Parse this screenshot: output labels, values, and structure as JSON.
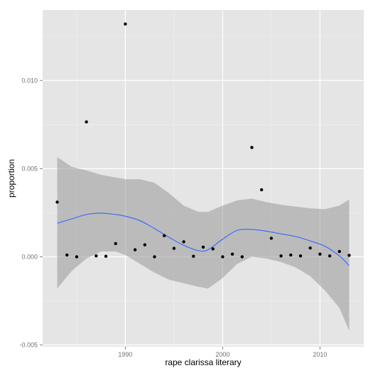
{
  "chart_data": {
    "type": "scatter",
    "title": "",
    "xlabel": "rape clarissa literary",
    "ylabel": "proportion",
    "xlim": [
      1981.5,
      2014.5
    ],
    "ylim": [
      -0.0051,
      0.014
    ],
    "x_ticks": [
      1990,
      2000,
      2010
    ],
    "x_tick_labels": [
      "1990",
      "2000",
      "2010"
    ],
    "y_ticks": [
      -0.005,
      0.0,
      0.005,
      0.01
    ],
    "y_tick_labels": [
      "-0.005",
      "0.000",
      "0.005",
      "0.010"
    ],
    "grid": true,
    "legend": "none",
    "colors": {
      "panel_background": "#e5e5e5",
      "grid_major": "#ffffff",
      "grid_minor": "#f0f0f0",
      "points": "#000000",
      "smooth_line": "#3366ff",
      "confidence_band": "#999999"
    },
    "points": [
      {
        "x": 1983,
        "y": 0.0031
      },
      {
        "x": 1984,
        "y": 0.0001
      },
      {
        "x": 1985,
        "y": 0.0
      },
      {
        "x": 1986,
        "y": 0.00765
      },
      {
        "x": 1987,
        "y": 5e-05
      },
      {
        "x": 1988,
        "y": 3e-05
      },
      {
        "x": 1989,
        "y": 0.00075
      },
      {
        "x": 1990,
        "y": 0.0132
      },
      {
        "x": 1991,
        "y": 0.0004
      },
      {
        "x": 1992,
        "y": 0.00068
      },
      {
        "x": 1993,
        "y": 0.0
      },
      {
        "x": 1994,
        "y": 0.0012
      },
      {
        "x": 1995,
        "y": 0.00048
      },
      {
        "x": 1996,
        "y": 0.00085
      },
      {
        "x": 1997,
        "y": 3e-05
      },
      {
        "x": 1998,
        "y": 0.00055
      },
      {
        "x": 1999,
        "y": 0.00045
      },
      {
        "x": 2000,
        "y": 0.0
      },
      {
        "x": 2001,
        "y": 0.00015
      },
      {
        "x": 2002,
        "y": 0.0
      },
      {
        "x": 2003,
        "y": 0.0062
      },
      {
        "x": 2004,
        "y": 0.0038
      },
      {
        "x": 2005,
        "y": 0.00105
      },
      {
        "x": 2006,
        "y": 5e-05
      },
      {
        "x": 2007,
        "y": 0.0001
      },
      {
        "x": 2008,
        "y": 5e-05
      },
      {
        "x": 2009,
        "y": 0.0005
      },
      {
        "x": 2010,
        "y": 0.00015
      },
      {
        "x": 2011,
        "y": 5e-05
      },
      {
        "x": 2012,
        "y": 0.0003
      },
      {
        "x": 2013,
        "y": 8e-05
      }
    ],
    "smooth": {
      "x": [
        1983,
        1984.5,
        1986,
        1987.5,
        1989,
        1990,
        1991.5,
        1993,
        1994.5,
        1996,
        1997.5,
        1998.5,
        2000,
        2001.5,
        2003,
        2004.5,
        2006,
        2007.5,
        2009,
        2010.5,
        2012,
        2013
      ],
      "y": [
        0.0019,
        0.00215,
        0.0024,
        0.00248,
        0.0024,
        0.0023,
        0.00205,
        0.0016,
        0.0011,
        0.00065,
        0.00035,
        0.0004,
        0.001,
        0.0015,
        0.00155,
        0.00145,
        0.0013,
        0.00115,
        0.0009,
        0.0006,
        5e-05,
        -0.0005
      ],
      "lower": [
        -0.0018,
        -0.0008,
        -0.0001,
        0.0003,
        0.0003,
        0.0001,
        -0.0004,
        -0.0009,
        -0.0013,
        -0.0015,
        -0.0017,
        -0.0018,
        -0.0012,
        -0.0004,
        0.0,
        -0.0001,
        -0.0003,
        -0.0006,
        -0.0011,
        -0.0019,
        -0.0029,
        -0.0042
      ],
      "upper": [
        0.00565,
        0.0051,
        0.0049,
        0.00465,
        0.0045,
        0.0044,
        0.0044,
        0.0042,
        0.0036,
        0.0029,
        0.00255,
        0.00255,
        0.0029,
        0.0032,
        0.0033,
        0.0031,
        0.00295,
        0.00285,
        0.00275,
        0.0027,
        0.0029,
        0.00325
      ]
    }
  }
}
